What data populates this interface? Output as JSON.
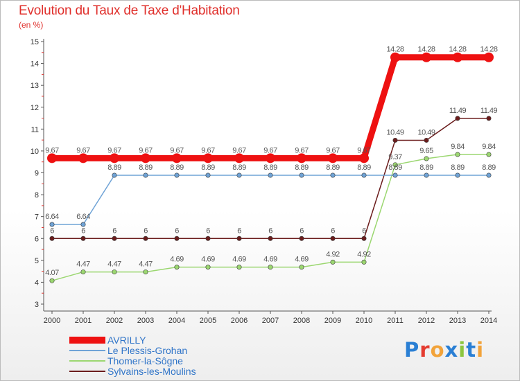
{
  "colors": {
    "title": "#e0302c",
    "axis": "#555555",
    "tick_label": "#333333",
    "value_label": "#555555",
    "legend_text": "#2f74c8"
  },
  "logo": {
    "text": "Proxiti",
    "letters": [
      "P",
      "r",
      "o",
      "x",
      "i",
      "t",
      "i"
    ],
    "colors": [
      "#2a7fd4",
      "#e43b2f",
      "#f2a33a",
      "#2a7fd4",
      "#8cc63f",
      "#2a7fd4",
      "#f2a33a"
    ]
  },
  "chart_data": {
    "type": "line",
    "title": "Evolution du Taux de Taxe d'Habitation",
    "subtitle": "(en %)",
    "xlabel": "",
    "ylabel": "(en %)",
    "x": [
      "2000",
      "2001",
      "2002",
      "2003",
      "2004",
      "2005",
      "2006",
      "2007",
      "2008",
      "2009",
      "2010",
      "2011",
      "2012",
      "2013",
      "2014"
    ],
    "ylim": [
      3,
      15
    ],
    "yticks": [
      "3",
      "4",
      "5",
      "6",
      "7",
      "8",
      "9",
      "10",
      "11",
      "12",
      "13",
      "14",
      "15"
    ],
    "grid": false,
    "legend": "bottom-left",
    "series": [
      {
        "name": "Sylvains-les-Moulins",
        "key": "sylvains",
        "color": "#6b1c1c",
        "values": [
          6,
          6,
          6,
          6,
          6,
          6,
          6,
          6,
          6,
          6,
          6,
          10.49,
          10.49,
          11.49,
          11.49
        ],
        "labels": [
          "6",
          "6",
          "6",
          "6",
          "6",
          "6",
          "6",
          "6",
          "6",
          "6",
          "6",
          "10.49",
          "10.49",
          "11.49",
          "11.49"
        ]
      },
      {
        "name": "Thomer-la-Sôgne",
        "key": "thomer",
        "color": "#9bd770",
        "values": [
          4.07,
          4.47,
          4.47,
          4.47,
          4.69,
          4.69,
          4.69,
          4.69,
          4.69,
          4.92,
          4.92,
          9.37,
          9.65,
          9.84,
          9.84
        ],
        "labels": [
          "4.07",
          "4.47",
          "4.47",
          "4.47",
          "4.69",
          "4.69",
          "4.69",
          "4.69",
          "4.69",
          "4.92",
          "4.92",
          "9.37",
          "9.65",
          "9.84",
          "9.84"
        ]
      },
      {
        "name": "Le Plessis-Grohan",
        "key": "plessis",
        "color": "#6fa3d6",
        "values": [
          6.64,
          6.64,
          8.89,
          8.89,
          8.89,
          8.89,
          8.89,
          8.89,
          8.89,
          8.89,
          8.89,
          8.89,
          8.89,
          8.89,
          8.89
        ],
        "labels": [
          "6.64",
          "6.64",
          "8.89",
          "8.89",
          "8.89",
          "8.89",
          "8.89",
          "8.89",
          "8.89",
          "8.89",
          "8.89",
          "8.89",
          "8.89",
          "8.89",
          "8.89"
        ]
      },
      {
        "name": "AVRILLY",
        "key": "avrilly",
        "color": "#ee1111",
        "values": [
          9.67,
          9.67,
          9.67,
          9.67,
          9.67,
          9.67,
          9.67,
          9.67,
          9.67,
          9.67,
          9.67,
          14.28,
          14.28,
          14.28,
          14.28
        ],
        "labels": [
          "9.67",
          "9.67",
          "9.67",
          "9.67",
          "9.67",
          "9.67",
          "9.67",
          "9.67",
          "9.67",
          "9.67",
          "9.67",
          "14.28",
          "14.28",
          "14.28",
          "14.28"
        ]
      }
    ]
  },
  "legend": {
    "items": [
      {
        "name": "AVRILLY",
        "color": "#ee1111",
        "thick": true
      },
      {
        "name": "Le Plessis-Grohan",
        "color": "#6fa3d6",
        "thick": false
      },
      {
        "name": "Thomer-la-Sôgne",
        "color": "#9bd770",
        "thick": false
      },
      {
        "name": "Sylvains-les-Moulins",
        "color": "#6b1c1c",
        "thick": false
      }
    ]
  }
}
